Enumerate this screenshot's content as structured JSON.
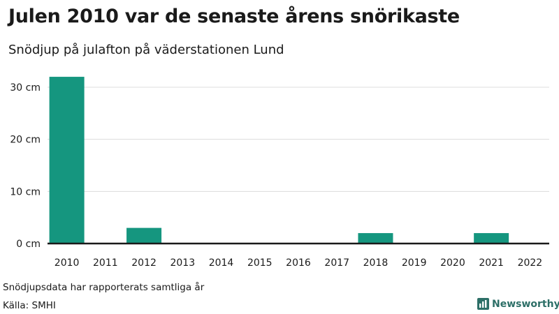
{
  "header": {
    "title": "Julen 2010 var de senaste årens snörikaste",
    "subtitle": "Snödjup på julafton på väderstationen Lund"
  },
  "footer": {
    "note": "Snödjupsdata har rapporterats samtliga år",
    "source": "Källa: SMHI",
    "brand": "Newsworthy",
    "brand_icon": "bar-chart-logo-icon",
    "brand_color": "#2d6f67"
  },
  "chart_data": {
    "type": "bar",
    "title": "Julen 2010 var de senaste årens snörikaste",
    "subtitle": "Snödjup på julafton på väderstationen Lund",
    "xlabel": "",
    "ylabel": "",
    "categories": [
      "2010",
      "2011",
      "2012",
      "2013",
      "2014",
      "2015",
      "2016",
      "2017",
      "2018",
      "2019",
      "2020",
      "2021",
      "2022"
    ],
    "values": [
      32,
      0,
      3,
      0,
      0,
      0,
      0,
      0,
      2,
      0,
      0,
      2,
      0
    ],
    "unit": "cm",
    "yticks": [
      0,
      10,
      20,
      30
    ],
    "ytick_labels": [
      "0 cm",
      "10 cm",
      "20 cm",
      "30 cm"
    ],
    "ylim": [
      0,
      32
    ],
    "grid": true,
    "bar_color": "#15967f"
  }
}
